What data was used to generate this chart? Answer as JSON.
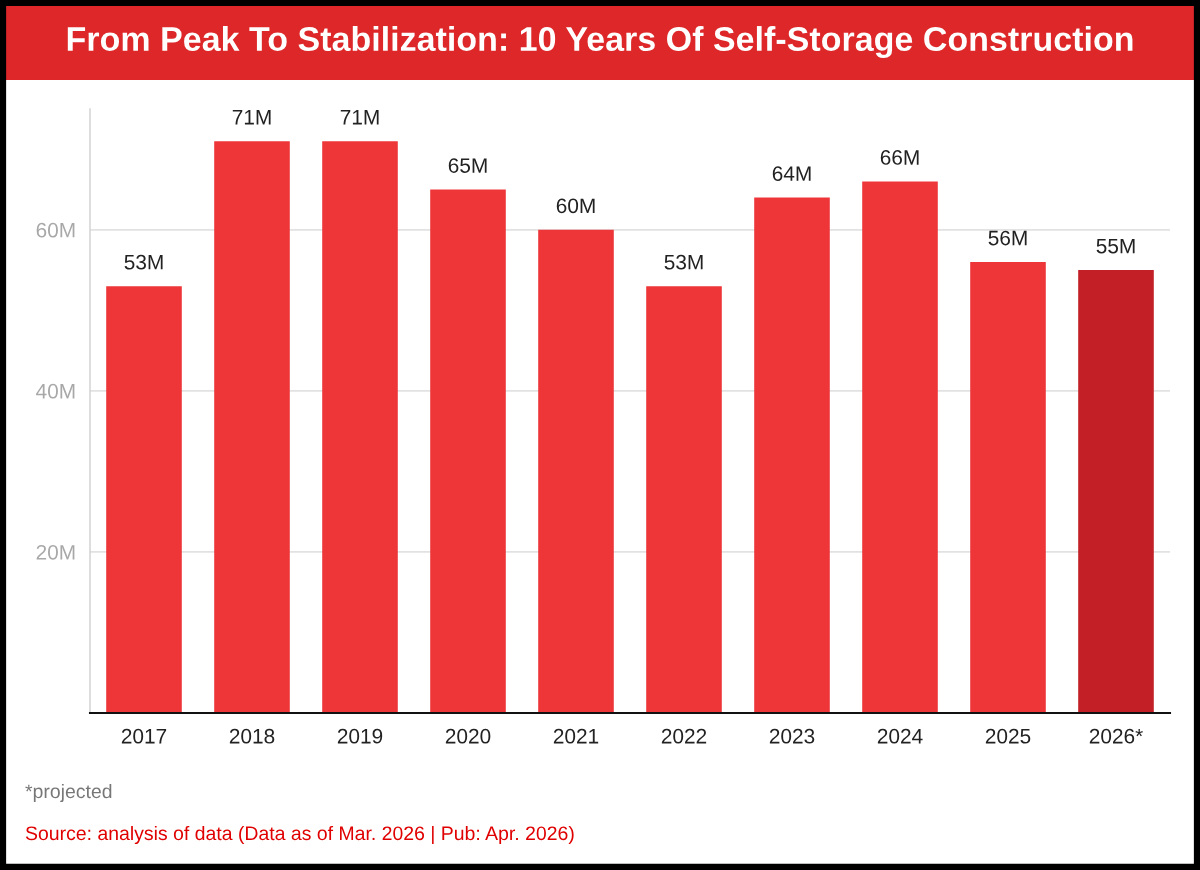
{
  "chart_data": {
    "type": "bar",
    "title": "From Peak To Stabilization: 10 Years Of Self-Storage Construction",
    "categories": [
      "2017",
      "2018",
      "2019",
      "2020",
      "2021",
      "2022",
      "2023",
      "2024",
      "2025",
      "2026*"
    ],
    "values": [
      53,
      71,
      71,
      65,
      60,
      53,
      64,
      66,
      56,
      55
    ],
    "colors": [
      "#ee3638",
      "#ee3638",
      "#ee3638",
      "#ee3638",
      "#ee3638",
      "#ee3638",
      "#ee3638",
      "#ee3638",
      "#ee3638",
      "#c22026"
    ],
    "value_labels": [
      "53M",
      "71M",
      "71M",
      "65M",
      "60M",
      "53M",
      "64M",
      "66M",
      "56M",
      "55M"
    ],
    "ylim": [
      0,
      75
    ],
    "yticks": [
      {
        "value": 20,
        "label": "20M"
      },
      {
        "value": 40,
        "label": "40M"
      },
      {
        "value": 60,
        "label": "60M"
      }
    ],
    "grid": "y",
    "legend": false,
    "annotations": [
      "*projected",
      "Source: analysis of data (Data as of Mar. 2026 | Pub: Apr. 2026)"
    ]
  }
}
